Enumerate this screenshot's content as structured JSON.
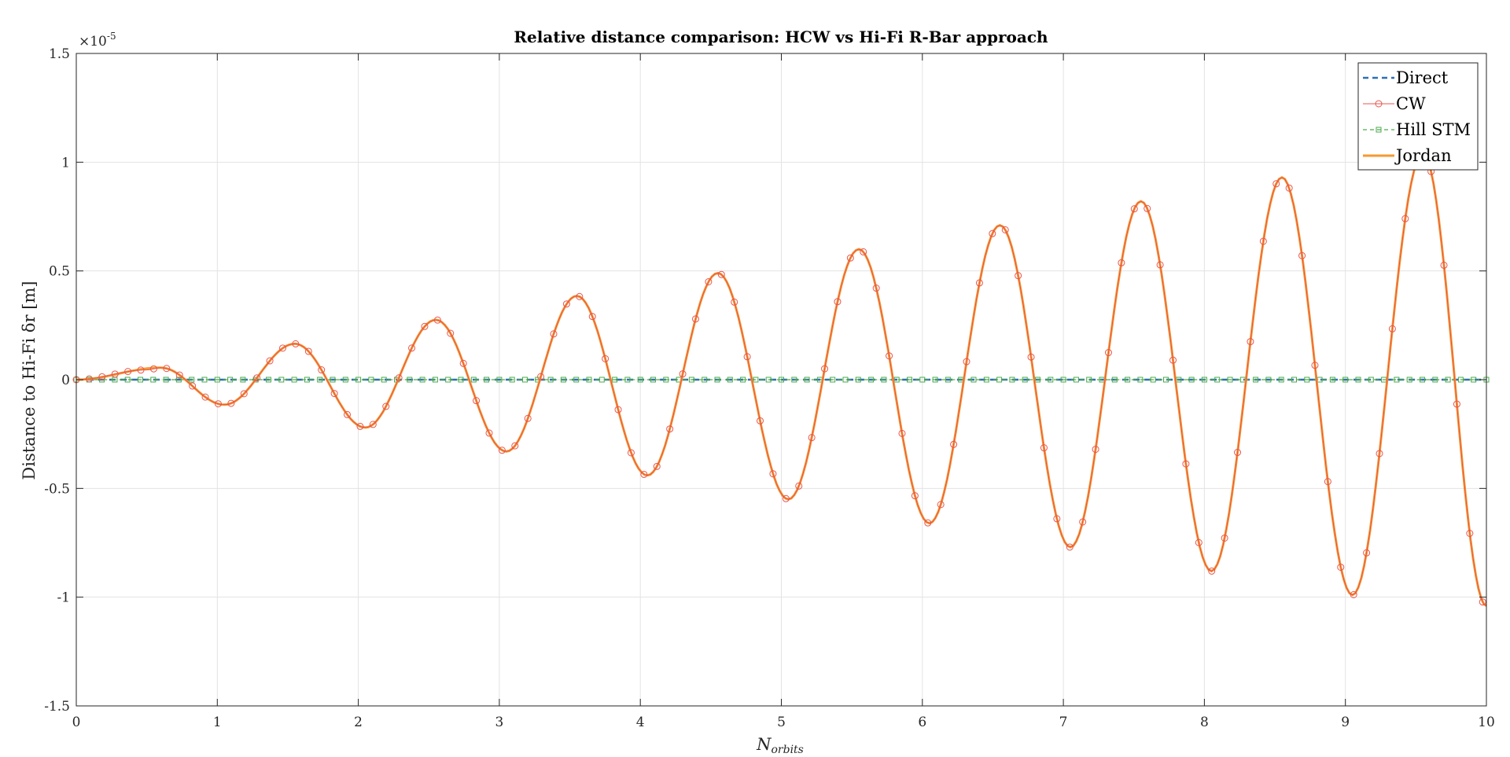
{
  "chart_data": {
    "type": "line",
    "title": "Relative distance comparison: HCW vs Hi-Fi R-Bar approach",
    "xlabel": "N",
    "xlabel_sub": "orbits",
    "ylabel": "Distance to Hi-Fi δr [m]",
    "exponent_label": "×10",
    "exponent_power": "-5",
    "xlim": [
      0,
      10
    ],
    "ylim": [
      -1.5,
      1.5
    ],
    "xticks": [
      "0",
      "1",
      "2",
      "3",
      "4",
      "5",
      "6",
      "7",
      "8",
      "9",
      "10"
    ],
    "yticks": [
      "-1.5",
      "-1",
      "-0.5",
      "0",
      "0.5",
      "1",
      "1.5"
    ],
    "y_scale_factor": 1e-05,
    "grid": true,
    "legend_position": "top-right",
    "series": [
      {
        "name": "Direct",
        "style": "dashed",
        "color": "#2f6fb3",
        "marker": "none",
        "x": [
          0,
          10
        ],
        "y": [
          0,
          0
        ]
      },
      {
        "name": "CW",
        "style": "solid-thin",
        "color": "#e8554e",
        "marker": "circle",
        "x": [
          0,
          0.5,
          0.6,
          1.05,
          1.55,
          2.05,
          2.55,
          3.05,
          3.55,
          4.05,
          4.55,
          5.05,
          5.55,
          6.05,
          6.55,
          7.05,
          7.55,
          8.05,
          8.55,
          9.05,
          9.55,
          10
        ],
        "y": [
          0,
          0.045,
          0.055,
          -0.115,
          0.165,
          -0.22,
          0.275,
          -0.33,
          0.385,
          -0.44,
          0.49,
          -0.55,
          0.6,
          -0.66,
          0.71,
          -0.77,
          0.82,
          -0.88,
          0.93,
          -0.99,
          1.04,
          -1.04
        ]
      },
      {
        "name": "Hill STM",
        "style": "dashed-thin",
        "color": "#4aaa4a",
        "marker": "square",
        "x": [
          0,
          10
        ],
        "y": [
          0,
          0
        ]
      },
      {
        "name": "Jordan",
        "style": "solid-thick",
        "color": "#f59a2f",
        "marker": "none",
        "x": [
          0,
          0.6,
          1.05,
          1.55,
          2.05,
          2.55,
          3.05,
          3.55,
          4.05,
          4.55,
          5.05,
          5.55,
          6.05,
          6.55,
          7.05,
          7.55,
          8.05,
          8.55,
          9.05,
          9.55,
          10
        ],
        "y": [
          0,
          0.055,
          -0.115,
          0.165,
          -0.22,
          0.275,
          -0.33,
          0.385,
          -0.44,
          0.49,
          -0.55,
          0.6,
          -0.66,
          0.71,
          -0.77,
          0.82,
          -0.88,
          0.93,
          -0.99,
          1.04,
          -1.04
        ]
      }
    ]
  }
}
